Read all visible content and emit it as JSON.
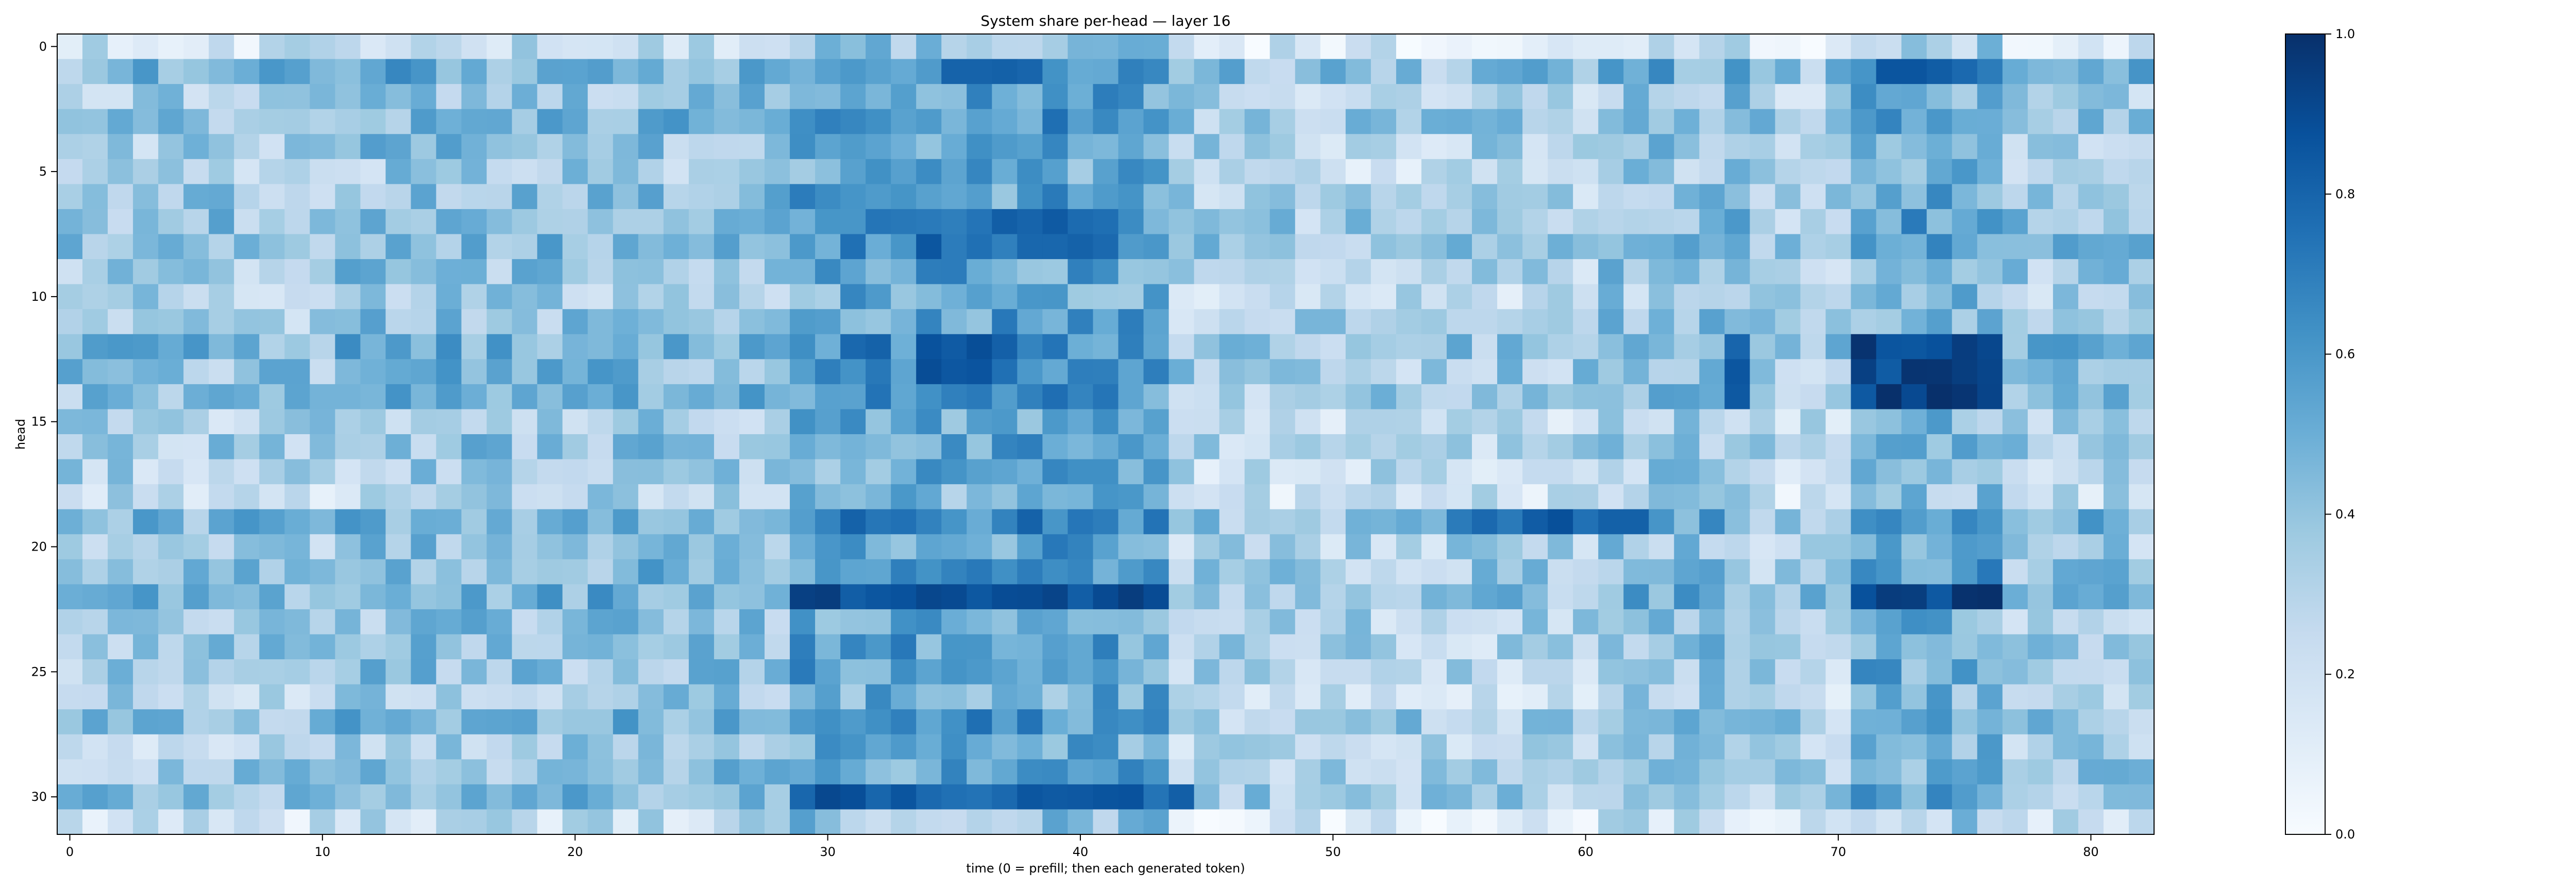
{
  "chart_data": {
    "type": "heatmap",
    "title": "System share per-head — layer 16",
    "xlabel": "time (0 = prefill; then each generated token)",
    "ylabel": "head",
    "n_rows": 32,
    "n_cols": 83,
    "x_ticks": [
      0,
      10,
      20,
      30,
      40,
      50,
      60,
      70,
      80
    ],
    "y_ticks": [
      0,
      5,
      10,
      15,
      20,
      25,
      30
    ],
    "colormap": "Blues",
    "vmin": 0.0,
    "vmax": 1.0,
    "colorbar_ticks": [
      0.0,
      0.2,
      0.4,
      0.6,
      0.8,
      1.0
    ],
    "colorbar_tick_labels": [
      "0.0",
      "0.2",
      "0.4",
      "0.6",
      "0.8",
      "1.0"
    ],
    "colors": {
      "low": "#f7fbff",
      "mid": "#6baed6",
      "high": "#08306b"
    },
    "row_base": [
      0.2,
      0.45,
      0.35,
      0.4,
      0.35,
      0.3,
      0.35,
      0.4,
      0.42,
      0.35,
      0.3,
      0.35,
      0.45,
      0.4,
      0.4,
      0.3,
      0.35,
      0.3,
      0.25,
      0.45,
      0.35,
      0.4,
      0.45,
      0.35,
      0.35,
      0.35,
      0.3,
      0.4,
      0.3,
      0.35,
      0.4,
      0.2
    ],
    "col_profile": [
      {
        "from": 0,
        "to": 10,
        "value": 0.0
      },
      {
        "from": 11,
        "to": 28,
        "value": 0.05
      },
      {
        "from": 29,
        "to": 43,
        "value": 0.2
      },
      {
        "from": 44,
        "to": 60,
        "value": -0.05
      },
      {
        "from": 61,
        "to": 66,
        "value": 0.05
      },
      {
        "from": 67,
        "to": 70,
        "value": -0.05
      },
      {
        "from": 71,
        "to": 76,
        "value": 0.15
      },
      {
        "from": 77,
        "to": 82,
        "value": 0.0
      }
    ],
    "hotspots": [
      {
        "rows": [
          12,
          14
        ],
        "cols": [
          71,
          76
        ],
        "value": 0.92
      },
      {
        "rows": [
          22,
          22
        ],
        "cols": [
          71,
          76
        ],
        "value": 0.92
      },
      {
        "rows": [
          22,
          22
        ],
        "cols": [
          29,
          43
        ],
        "value": 0.88
      },
      {
        "rows": [
          30,
          30
        ],
        "cols": [
          29,
          44
        ],
        "value": 0.82
      },
      {
        "rows": [
          12,
          13
        ],
        "cols": [
          34,
          37
        ],
        "value": 0.82
      },
      {
        "rows": [
          7,
          8
        ],
        "cols": [
          34,
          40
        ],
        "value": 0.78
      },
      {
        "rows": [
          19,
          19
        ],
        "cols": [
          55,
          62
        ],
        "value": 0.8
      },
      {
        "rows": [
          12,
          14
        ],
        "cols": [
          66,
          66
        ],
        "value": 0.88
      },
      {
        "rows": [
          1,
          1
        ],
        "cols": [
          72,
          76
        ],
        "value": 0.78
      }
    ]
  }
}
